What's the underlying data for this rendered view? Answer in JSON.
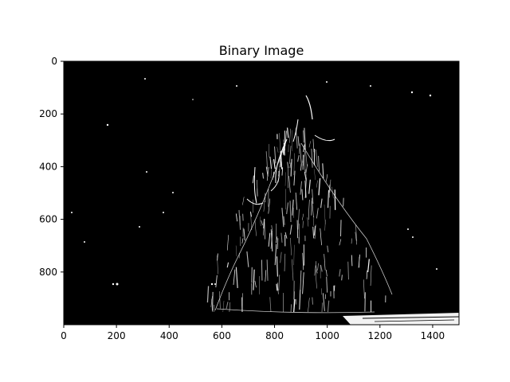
{
  "figure": {
    "title": "Binary Image",
    "background": "#ffffff",
    "image_fg": "#ffffff",
    "image_bg": "#000000"
  },
  "chart_data": {
    "type": "heatmap",
    "title": "Binary Image",
    "xlabel": "",
    "ylabel": "",
    "xlim": [
      0,
      1500
    ],
    "ylim": [
      1000,
      0
    ],
    "x_ticks": [
      0,
      200,
      400,
      600,
      800,
      1000,
      1200,
      1400
    ],
    "y_ticks": [
      0,
      200,
      400,
      600,
      800
    ],
    "grid": false,
    "colormap": "gray",
    "content": "binary silhouette"
  }
}
